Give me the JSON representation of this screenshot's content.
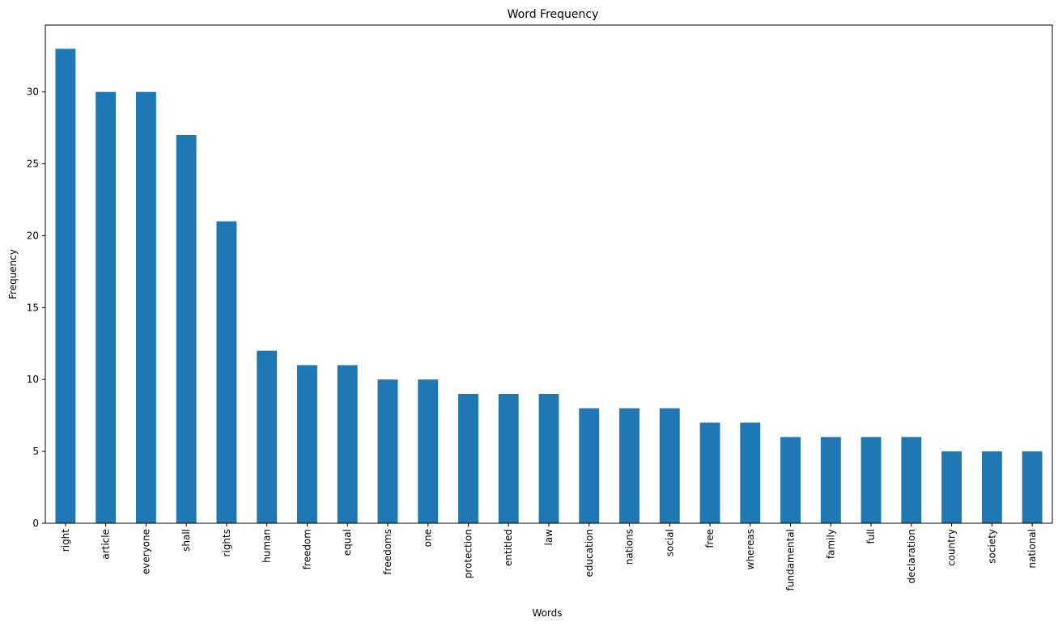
{
  "chart_data": {
    "type": "bar",
    "title": "Word Frequency",
    "xlabel": "Words",
    "ylabel": "Frequency",
    "categories": [
      "right",
      "article",
      "everyone",
      "shall",
      "rights",
      "human",
      "freedom",
      "equal",
      "freedoms",
      "one",
      "protection",
      "entitled",
      "law",
      "education",
      "nations",
      "social",
      "free",
      "whereas",
      "fundamental",
      "family",
      "full",
      "declaration",
      "country",
      "society",
      "national"
    ],
    "values": [
      33,
      30,
      30,
      27,
      21,
      12,
      11,
      11,
      10,
      10,
      9,
      9,
      9,
      8,
      8,
      8,
      7,
      7,
      6,
      6,
      6,
      6,
      5,
      5,
      5
    ],
    "ylim": [
      0,
      34.65
    ],
    "yticks": [
      0,
      5,
      10,
      15,
      20,
      25,
      30
    ],
    "grid": false,
    "bar_color": "#1f77b4"
  }
}
